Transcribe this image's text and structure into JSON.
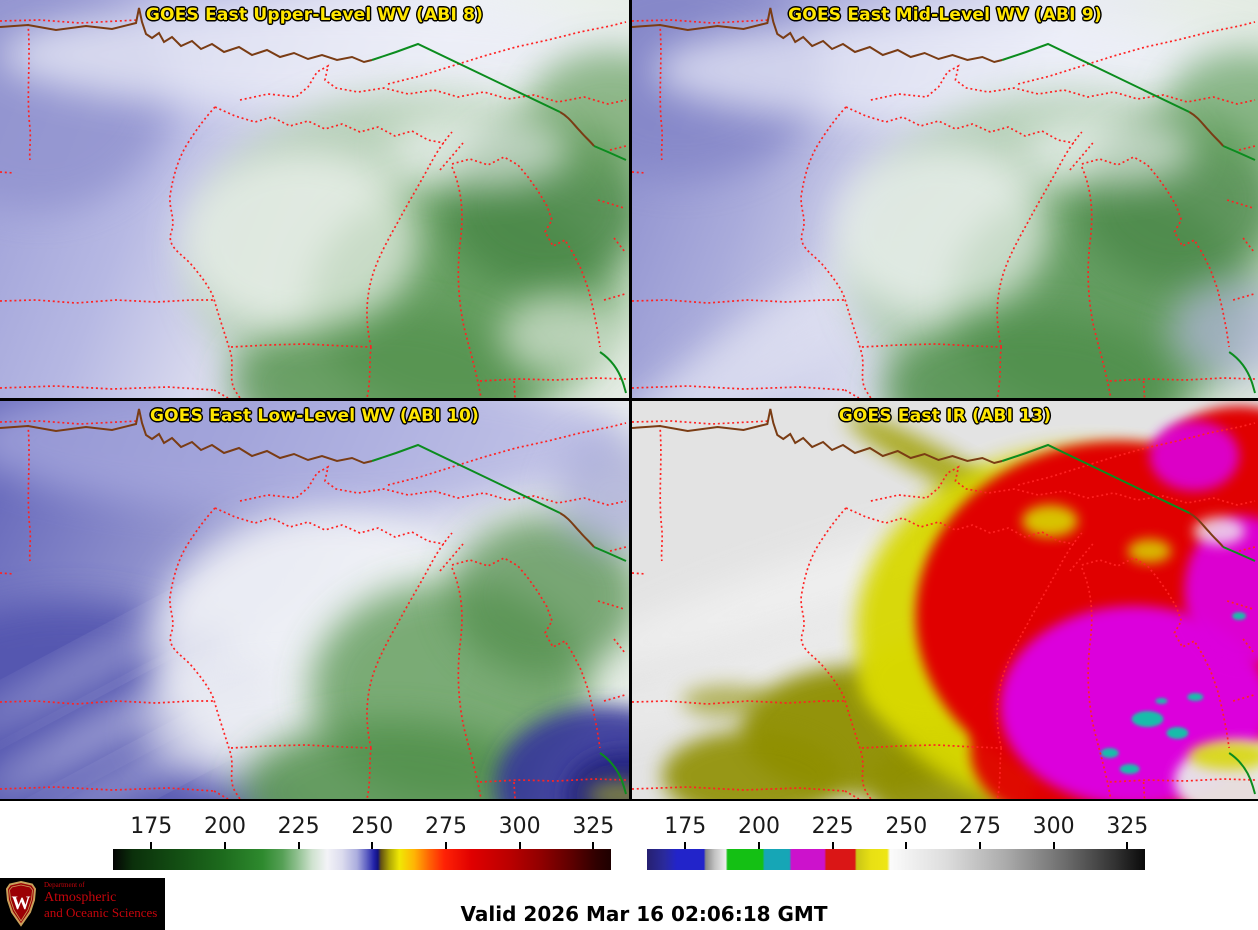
{
  "panels": [
    {
      "title": "GOES East Upper-Level WV (ABI 8)"
    },
    {
      "title": "GOES East Mid-Level WV (ABI 9)"
    },
    {
      "title": "GOES East Low-Level WV (ABI 10)"
    },
    {
      "title": "GOES East IR (ABI 13)"
    }
  ],
  "colors": {
    "panel_title": "#ffe600",
    "logo_text": "#c5050c",
    "map_border": "#ff2222",
    "shoreline_brown": "#7a3c14",
    "shoreline_green": "#0b8c1e"
  },
  "colorbars": [
    {
      "name": "water-vapor-colorbar",
      "range": [
        162,
        331
      ],
      "ticks": [
        175,
        200,
        225,
        250,
        275,
        300,
        325
      ],
      "stops": [
        [
          "#040404",
          0
        ],
        [
          "#0b300b",
          4
        ],
        [
          "#124b12",
          12
        ],
        [
          "#1d6b1d",
          22
        ],
        [
          "#2e8a2e",
          30
        ],
        [
          "#56a056",
          34
        ],
        [
          "#8fc08f",
          37
        ],
        [
          "#cfe2cf",
          40
        ],
        [
          "#f3f3f7",
          43
        ],
        [
          "#dcdcee",
          46
        ],
        [
          "#abadde",
          49
        ],
        [
          "#5d5fc2",
          51
        ],
        [
          "#2222a8",
          52.4
        ],
        [
          "#12127e",
          53.2
        ],
        [
          "#635112",
          53.8
        ],
        [
          "#b0a805",
          55.5
        ],
        [
          "#f0e805",
          57.5
        ],
        [
          "#ffb405",
          60.5
        ],
        [
          "#ff6405",
          63.5
        ],
        [
          "#ff2205",
          66.5
        ],
        [
          "#e00000",
          72
        ],
        [
          "#b80000",
          80
        ],
        [
          "#900000",
          86
        ],
        [
          "#5e0000",
          92
        ],
        [
          "#300000",
          97
        ],
        [
          "#1e0000",
          100
        ]
      ]
    },
    {
      "name": "ir-colorbar",
      "range": [
        162,
        331
      ],
      "ticks": [
        175,
        200,
        225,
        250,
        275,
        300,
        325
      ],
      "stops": [
        [
          "#262070",
          0
        ],
        [
          "#2a2a9c",
          3.5
        ],
        [
          "#2224ca",
          6
        ],
        [
          "#2224ca",
          11.4
        ],
        [
          "#888888",
          11.8
        ],
        [
          "#c2c2c2",
          13.6
        ],
        [
          "#eeeeee",
          15.8
        ],
        [
          "#14c014",
          16.2
        ],
        [
          "#14c014",
          23.2
        ],
        [
          "#16a6b6",
          23.6
        ],
        [
          "#16a6b6",
          28.6
        ],
        [
          "#cc12cc",
          29
        ],
        [
          "#cc12cc",
          35.6
        ],
        [
          "#da1616",
          36
        ],
        [
          "#da1616",
          41.7
        ],
        [
          "#c9c516",
          42.1
        ],
        [
          "#e8e014",
          45
        ],
        [
          "#eee614",
          48.2
        ],
        [
          "#fbfbfb",
          48.8
        ],
        [
          "#dddddd",
          60
        ],
        [
          "#ababab",
          72
        ],
        [
          "#6c6c6c",
          84
        ],
        [
          "#323232",
          94
        ],
        [
          "#0a0a0a",
          100
        ]
      ]
    }
  ],
  "footer": {
    "valid": "Valid 2026 Mar 16 02:06:18 GMT",
    "logo": {
      "crest_letter": "W",
      "line1": "Department of",
      "line2": "Atmospheric",
      "line3": "and Oceanic Sciences"
    }
  }
}
